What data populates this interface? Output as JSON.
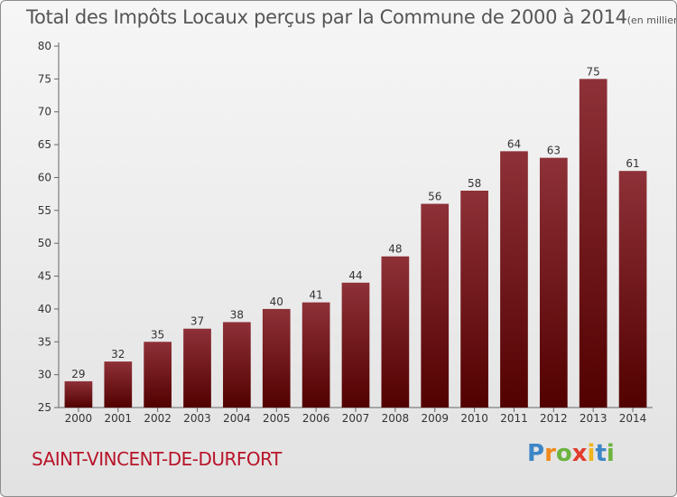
{
  "chart_data": {
    "type": "bar",
    "title": "Total des Impôts Locaux perçus par la Commune de 2000 à 2014",
    "unit": "(en milliers d'€)",
    "categories": [
      "2000",
      "2001",
      "2002",
      "2003",
      "2004",
      "2005",
      "2006",
      "2007",
      "2008",
      "2009",
      "2010",
      "2011",
      "2012",
      "2013",
      "2014"
    ],
    "values": [
      29,
      32,
      35,
      37,
      38,
      40,
      41,
      44,
      48,
      56,
      58,
      64,
      63,
      75,
      61
    ],
    "ylim": [
      25,
      80
    ],
    "yticks": [
      25,
      30,
      35,
      40,
      45,
      50,
      55,
      60,
      65,
      70,
      75,
      80
    ],
    "xlabel": "",
    "ylabel": "",
    "grid": false,
    "bar_color_top": "#8e3138",
    "bar_color_bottom": "#520000"
  },
  "footer": {
    "commune": "SAINT-VINCENT-DE-DURFORT"
  },
  "brand": {
    "letters": [
      {
        "char": "P",
        "color": "#3d86c6"
      },
      {
        "char": "r",
        "color": "#f08a1c"
      },
      {
        "char": "o",
        "color": "#6cb33f"
      },
      {
        "char": "x",
        "color": "#e23b2e"
      },
      {
        "char": "i",
        "color": "#f0b41c"
      },
      {
        "char": "t",
        "color": "#3d86c6"
      },
      {
        "char": "i",
        "color": "#6cb33f"
      }
    ]
  }
}
